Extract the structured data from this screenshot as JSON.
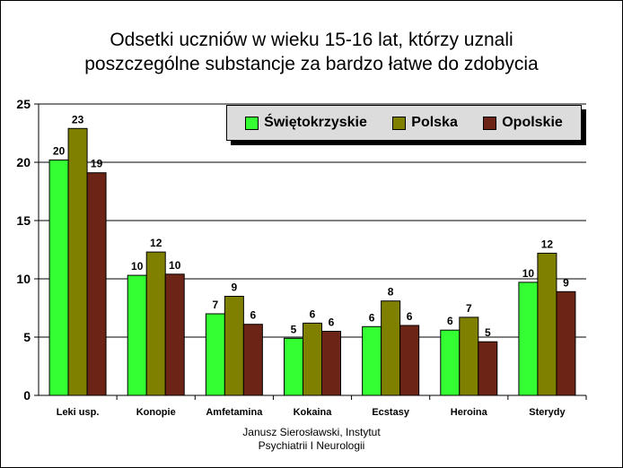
{
  "chart_data": {
    "type": "bar",
    "title_lines": [
      "Odsetki uczniów w wieku 15-16 lat, którzy uznali",
      "poszczególne substancje za bardzo łatwe do zdobycia"
    ],
    "categories": [
      "Leki usp.",
      "Konopie",
      "Amfetamina",
      "Kokaina",
      "Ecstasy",
      "Heroina",
      "Sterydy"
    ],
    "series": [
      {
        "name": "Świętokrzyskie",
        "color": "#33ff33",
        "values": [
          20.2,
          10.3,
          7.0,
          4.9,
          5.9,
          5.6,
          9.7
        ],
        "labels": [
          "20",
          "10",
          "7",
          "5",
          "6",
          "6",
          "10"
        ]
      },
      {
        "name": "Polska",
        "color": "#808000",
        "values": [
          22.9,
          12.3,
          8.5,
          6.2,
          8.1,
          6.7,
          12.2
        ],
        "labels": [
          "23",
          "12",
          "9",
          "6",
          "8",
          "7",
          "12"
        ]
      },
      {
        "name": "Opolskie",
        "color": "#6b2416",
        "values": [
          19.1,
          10.4,
          6.1,
          5.5,
          6.0,
          4.6,
          8.9
        ],
        "labels": [
          "19",
          "10",
          "6",
          "6",
          "6",
          "5",
          "9"
        ]
      }
    ],
    "yticks": [
      "0",
      "5",
      "10",
      "15",
      "20",
      "25"
    ],
    "ylim": [
      0,
      25
    ],
    "grid": true,
    "legend_position": "top-right"
  },
  "credit_lines": [
    "Janusz Sierosławski, Instytut",
    "Psychiatrii I Neurologii"
  ]
}
